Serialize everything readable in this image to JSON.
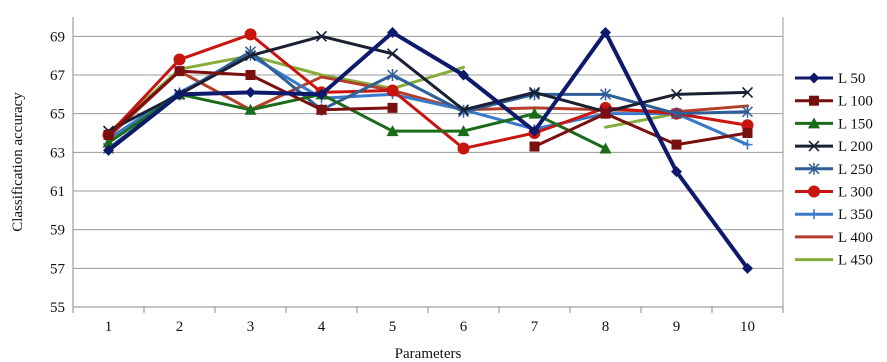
{
  "chart_data": {
    "type": "line",
    "title": "",
    "xlabel": "Parameters",
    "ylabel": "Classification accuracy",
    "x": [
      1,
      2,
      3,
      4,
      5,
      6,
      7,
      8,
      9,
      10
    ],
    "xlim": [
      0.5,
      10.5
    ],
    "ylim": [
      55,
      70
    ],
    "yticks": [
      55,
      57,
      59,
      61,
      63,
      65,
      67,
      69
    ],
    "grid": "horizontal",
    "legend_position": "right",
    "series": [
      {
        "name": "L 50",
        "color": "#0d1a6b",
        "marker": "diamond",
        "values": [
          63.1,
          66.0,
          66.1,
          66.0,
          69.2,
          67.0,
          64.1,
          69.2,
          62.0,
          57.0
        ]
      },
      {
        "name": "L 100",
        "color": "#7a0f0f",
        "marker": "square",
        "values": [
          63.9,
          67.2,
          67.0,
          65.2,
          65.3,
          null,
          63.3,
          65.0,
          63.4,
          64.0
        ]
      },
      {
        "name": "L 150",
        "color": "#1a6b1a",
        "marker": "triangle",
        "values": [
          63.5,
          66.0,
          65.2,
          66.0,
          64.1,
          64.1,
          65.0,
          63.2,
          null,
          null
        ]
      },
      {
        "name": "L 200",
        "color": "#1a1f33",
        "marker": "x",
        "values": [
          64.1,
          66.0,
          68.0,
          69.0,
          68.1,
          65.2,
          66.1,
          65.1,
          66.0,
          66.1
        ]
      },
      {
        "name": "L 250",
        "color": "#2f5f96",
        "marker": "star",
        "values": [
          63.2,
          66.0,
          68.2,
          65.2,
          67.0,
          65.1,
          66.0,
          66.0,
          65.0,
          65.1
        ]
      },
      {
        "name": "L 300",
        "color": "#c8150f",
        "marker": "circle",
        "values": [
          63.9,
          67.8,
          69.1,
          66.1,
          66.2,
          63.2,
          64.0,
          65.3,
          65.0,
          64.4
        ]
      },
      {
        "name": "L 350",
        "color": "#3a78c9",
        "marker": "plus",
        "values": [
          63.7,
          66.1,
          68.0,
          65.8,
          66.0,
          65.2,
          64.2,
          65.0,
          65.0,
          63.4
        ]
      },
      {
        "name": "L 400",
        "color": "#b33f2a",
        "marker": "none",
        "values": [
          63.8,
          67.2,
          65.2,
          66.9,
          66.2,
          65.2,
          65.3,
          65.2,
          65.1,
          65.4
        ]
      },
      {
        "name": "L 450",
        "color": "#86ad3a",
        "marker": "none",
        "values": [
          64.0,
          67.3,
          68.0,
          67.0,
          66.3,
          67.4,
          null,
          64.3,
          65.0,
          63.4
        ]
      }
    ]
  }
}
